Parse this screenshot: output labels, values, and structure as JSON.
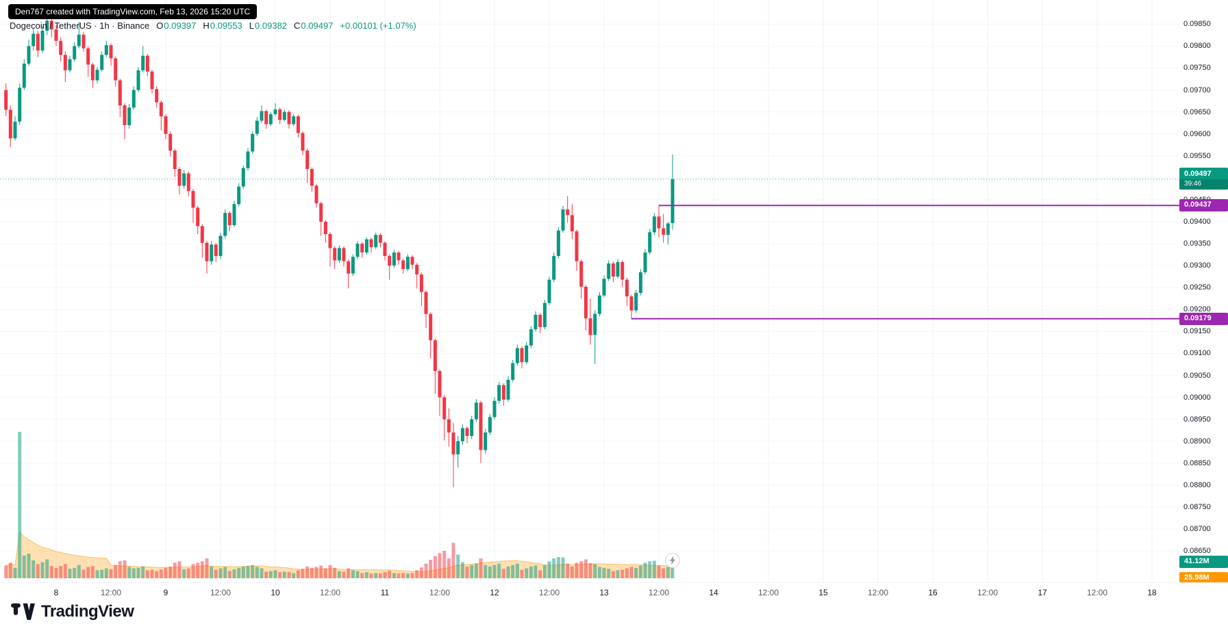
{
  "watermark": "Den767 created with TradingView.com, Feb 13, 2026 15:20 UTC",
  "legend": {
    "title": "Dogecoin / TetherUS · 1h · Binance",
    "o_label": "O",
    "o": "0.09397",
    "h_label": "H",
    "h": "0.09553",
    "l_label": "L",
    "l": "0.09382",
    "c_label": "C",
    "c": "0.09497",
    "change": "+0.00101 (+1.07%)"
  },
  "price_axis": {
    "ticks": [
      "0.09850",
      "0.09800",
      "0.09750",
      "0.09700",
      "0.09650",
      "0.09600",
      "0.09550",
      "0.09500",
      "0.09450",
      "0.09400",
      "0.09350",
      "0.09300",
      "0.09250",
      "0.09200",
      "0.09150",
      "0.09100",
      "0.09050",
      "0.09000",
      "0.08950",
      "0.08900",
      "0.08850",
      "0.08800",
      "0.08750",
      "0.08700",
      "0.08650"
    ],
    "current_price": "0.09497",
    "countdown": "39:46",
    "level1": "0.09437",
    "level2": "0.09179",
    "volume": "41.12M",
    "volume_ma": "25.98M"
  },
  "time_axis": {
    "labels": [
      "8",
      "12:00",
      "9",
      "12:00",
      "10",
      "12:00",
      "11",
      "12:00",
      "12",
      "12:00",
      "13",
      "12:00",
      "14",
      "12:00",
      "15",
      "12:00",
      "16",
      "12:00",
      "17",
      "12:00",
      "18"
    ]
  },
  "logo_text": "TradingView",
  "colors": {
    "up": "#089981",
    "down": "#f23645",
    "level": "#9c27b0",
    "volume_ma": "#ff9800",
    "text": "#131722"
  },
  "chart_data": {
    "type": "candlestick",
    "title": "Dogecoin / TetherUS, 1h, Binance",
    "interval": "1h",
    "exchange": "Binance",
    "pair": "Dogecoin / TetherUS",
    "current_price": 0.09497,
    "countdown": "39:46",
    "change": "+0.00101 (+1.07%)",
    "levels": [
      0.09437,
      0.09179
    ],
    "level_anchor_indexes": [
      143,
      137
    ],
    "price_axis_range": [
      0.0865,
      0.0985
    ],
    "time_axis_days": [
      8,
      18
    ],
    "volume_current_m": 41.12,
    "volume_ma_m": 25.98,
    "ohlcv_desc": "hourly candles [open, high, low, close, volume(M)], ending Feb 13 15:00 UTC",
    "ohlcv": [
      [
        0.097,
        0.09715,
        0.0964,
        0.09655,
        27
      ],
      [
        0.09655,
        0.09665,
        0.0957,
        0.0959,
        33
      ],
      [
        0.0959,
        0.0964,
        0.09585,
        0.09628,
        22
      ],
      [
        0.09628,
        0.09715,
        0.0962,
        0.09705,
        310
      ],
      [
        0.09705,
        0.0977,
        0.097,
        0.0976,
        48
      ],
      [
        0.0976,
        0.09815,
        0.09755,
        0.098,
        52
      ],
      [
        0.098,
        0.0984,
        0.0979,
        0.09828,
        38
      ],
      [
        0.09828,
        0.09835,
        0.09775,
        0.0979,
        30
      ],
      [
        0.0979,
        0.09845,
        0.09785,
        0.09835,
        34
      ],
      [
        0.09835,
        0.09867,
        0.09825,
        0.09858,
        40
      ],
      [
        0.09858,
        0.09862,
        0.0982,
        0.09838,
        26
      ],
      [
        0.09838,
        0.09848,
        0.098,
        0.09812,
        22
      ],
      [
        0.09812,
        0.0982,
        0.09765,
        0.0978,
        26
      ],
      [
        0.0978,
        0.09788,
        0.09718,
        0.09745,
        30
      ],
      [
        0.09745,
        0.09778,
        0.0974,
        0.0977,
        20
      ],
      [
        0.0977,
        0.09808,
        0.09765,
        0.098,
        22
      ],
      [
        0.098,
        0.09855,
        0.09795,
        0.09826,
        28
      ],
      [
        0.09826,
        0.09832,
        0.09788,
        0.09795,
        18
      ],
      [
        0.09795,
        0.098,
        0.0973,
        0.09758,
        24
      ],
      [
        0.09758,
        0.09762,
        0.09705,
        0.09722,
        26
      ],
      [
        0.09722,
        0.09752,
        0.09715,
        0.09746,
        17
      ],
      [
        0.09746,
        0.09788,
        0.09742,
        0.0978,
        18
      ],
      [
        0.0978,
        0.09812,
        0.09775,
        0.09802,
        21
      ],
      [
        0.09802,
        0.09806,
        0.09755,
        0.09772,
        19
      ],
      [
        0.09772,
        0.09776,
        0.09708,
        0.09722,
        28
      ],
      [
        0.09722,
        0.09726,
        0.09638,
        0.09665,
        36
      ],
      [
        0.09665,
        0.0967,
        0.09588,
        0.0962,
        38
      ],
      [
        0.0962,
        0.09668,
        0.09612,
        0.0966,
        24
      ],
      [
        0.0966,
        0.09708,
        0.09655,
        0.097,
        21
      ],
      [
        0.097,
        0.09752,
        0.09695,
        0.09745,
        22
      ],
      [
        0.09745,
        0.098,
        0.0974,
        0.09778,
        25
      ],
      [
        0.09778,
        0.09782,
        0.09732,
        0.09742,
        17
      ],
      [
        0.09742,
        0.09746,
        0.09692,
        0.09702,
        18
      ],
      [
        0.09702,
        0.09708,
        0.0966,
        0.09672,
        15
      ],
      [
        0.09672,
        0.09676,
        0.09608,
        0.0964,
        19
      ],
      [
        0.0964,
        0.09645,
        0.09588,
        0.096,
        22
      ],
      [
        0.096,
        0.09606,
        0.09548,
        0.09562,
        25
      ],
      [
        0.09562,
        0.09566,
        0.09502,
        0.0952,
        33
      ],
      [
        0.0952,
        0.09525,
        0.09462,
        0.09482,
        36
      ],
      [
        0.09482,
        0.09518,
        0.09475,
        0.0951,
        19
      ],
      [
        0.0951,
        0.09514,
        0.09458,
        0.0947,
        21
      ],
      [
        0.0947,
        0.09475,
        0.09398,
        0.09432,
        30
      ],
      [
        0.09432,
        0.09436,
        0.09372,
        0.0939,
        33
      ],
      [
        0.0939,
        0.09395,
        0.09318,
        0.09352,
        36
      ],
      [
        0.09352,
        0.09356,
        0.09282,
        0.0931,
        42
      ],
      [
        0.0931,
        0.09356,
        0.09302,
        0.09348,
        25
      ],
      [
        0.09348,
        0.09352,
        0.09308,
        0.09322,
        18
      ],
      [
        0.09322,
        0.09375,
        0.09315,
        0.09368,
        21
      ],
      [
        0.09368,
        0.09428,
        0.09362,
        0.0942,
        24
      ],
      [
        0.0942,
        0.09424,
        0.09378,
        0.09392,
        15
      ],
      [
        0.09392,
        0.09448,
        0.09388,
        0.0944,
        19
      ],
      [
        0.0944,
        0.09488,
        0.09435,
        0.0948,
        22
      ],
      [
        0.0948,
        0.09528,
        0.09475,
        0.09522,
        25
      ],
      [
        0.09522,
        0.09568,
        0.09516,
        0.0956,
        26
      ],
      [
        0.0956,
        0.09606,
        0.09555,
        0.096,
        28
      ],
      [
        0.096,
        0.09638,
        0.09595,
        0.0963,
        24
      ],
      [
        0.0963,
        0.09665,
        0.09625,
        0.09652,
        21
      ],
      [
        0.09652,
        0.09656,
        0.09612,
        0.09622,
        14
      ],
      [
        0.09622,
        0.0965,
        0.09618,
        0.09645,
        15
      ],
      [
        0.09645,
        0.0967,
        0.0964,
        0.09656,
        17
      ],
      [
        0.09656,
        0.0966,
        0.09622,
        0.09632,
        13
      ],
      [
        0.09632,
        0.09655,
        0.09628,
        0.0965,
        14
      ],
      [
        0.0965,
        0.09654,
        0.09612,
        0.09622,
        13
      ],
      [
        0.09622,
        0.09645,
        0.09618,
        0.0964,
        11
      ],
      [
        0.0964,
        0.09644,
        0.09592,
        0.09602,
        17
      ],
      [
        0.09602,
        0.09606,
        0.09552,
        0.09562,
        20
      ],
      [
        0.09562,
        0.09566,
        0.09488,
        0.0952,
        25
      ],
      [
        0.0952,
        0.09524,
        0.09468,
        0.09482,
        22
      ],
      [
        0.09482,
        0.09486,
        0.09432,
        0.09442,
        24
      ],
      [
        0.09442,
        0.09446,
        0.09368,
        0.094,
        27
      ],
      [
        0.094,
        0.09404,
        0.09352,
        0.09372,
        21
      ],
      [
        0.09372,
        0.09376,
        0.09298,
        0.0934,
        28
      ],
      [
        0.0934,
        0.09344,
        0.09292,
        0.09312,
        22
      ],
      [
        0.09312,
        0.09346,
        0.09306,
        0.0934,
        15
      ],
      [
        0.0934,
        0.09344,
        0.09298,
        0.0931,
        14
      ],
      [
        0.0931,
        0.09314,
        0.09248,
        0.09282,
        21
      ],
      [
        0.09282,
        0.09326,
        0.09276,
        0.0932,
        17
      ],
      [
        0.0932,
        0.09356,
        0.09315,
        0.0935,
        15
      ],
      [
        0.0935,
        0.09354,
        0.09318,
        0.0933,
        11
      ],
      [
        0.0933,
        0.09365,
        0.09325,
        0.0936,
        13
      ],
      [
        0.0936,
        0.09364,
        0.0933,
        0.09342,
        10
      ],
      [
        0.09342,
        0.09375,
        0.09338,
        0.0937,
        11
      ],
      [
        0.0937,
        0.09374,
        0.09342,
        0.09352,
        10
      ],
      [
        0.09352,
        0.09356,
        0.09312,
        0.09322,
        13
      ],
      [
        0.09322,
        0.09326,
        0.09268,
        0.093,
        16
      ],
      [
        0.093,
        0.09336,
        0.09295,
        0.0933,
        11
      ],
      [
        0.0933,
        0.09334,
        0.09302,
        0.09312,
        10
      ],
      [
        0.09312,
        0.09316,
        0.09282,
        0.09292,
        11
      ],
      [
        0.09292,
        0.09326,
        0.09288,
        0.0932,
        10
      ],
      [
        0.0932,
        0.09324,
        0.09292,
        0.09302,
        11
      ],
      [
        0.09302,
        0.09306,
        0.09248,
        0.0928,
        17
      ],
      [
        0.0928,
        0.09284,
        0.09208,
        0.0924,
        23
      ],
      [
        0.0924,
        0.09244,
        0.09158,
        0.0919,
        31
      ],
      [
        0.0919,
        0.09194,
        0.09088,
        0.0913,
        39
      ],
      [
        0.0913,
        0.09134,
        0.09008,
        0.0906,
        47
      ],
      [
        0.0906,
        0.09064,
        0.08958,
        0.09,
        53
      ],
      [
        0.09,
        0.09005,
        0.08902,
        0.0895,
        58
      ],
      [
        0.0895,
        0.08975,
        0.08888,
        0.0892,
        42
      ],
      [
        0.0892,
        0.08942,
        0.08795,
        0.0887,
        75
      ],
      [
        0.0887,
        0.08912,
        0.0884,
        0.089,
        50
      ],
      [
        0.089,
        0.08938,
        0.08892,
        0.0893,
        34
      ],
      [
        0.0893,
        0.08934,
        0.08896,
        0.08912,
        25
      ],
      [
        0.08912,
        0.08958,
        0.08905,
        0.0895,
        28
      ],
      [
        0.0895,
        0.08996,
        0.08944,
        0.08988,
        31
      ],
      [
        0.08988,
        0.08992,
        0.0885,
        0.0888,
        42
      ],
      [
        0.0888,
        0.08928,
        0.08872,
        0.0892,
        28
      ],
      [
        0.0892,
        0.08962,
        0.08914,
        0.08955,
        25
      ],
      [
        0.08955,
        0.09,
        0.0895,
        0.08992,
        28
      ],
      [
        0.08992,
        0.09035,
        0.08986,
        0.09028,
        31
      ],
      [
        0.09028,
        0.09032,
        0.08982,
        0.08995,
        20
      ],
      [
        0.08995,
        0.09048,
        0.0899,
        0.0904,
        25
      ],
      [
        0.0904,
        0.09085,
        0.09035,
        0.09078,
        28
      ],
      [
        0.09078,
        0.0912,
        0.09072,
        0.09112,
        31
      ],
      [
        0.09112,
        0.09116,
        0.09066,
        0.0908,
        18
      ],
      [
        0.0908,
        0.09126,
        0.09075,
        0.09118,
        21
      ],
      [
        0.09118,
        0.09162,
        0.09112,
        0.09155,
        25
      ],
      [
        0.09155,
        0.09196,
        0.0915,
        0.09188,
        27
      ],
      [
        0.09188,
        0.09192,
        0.09146,
        0.0916,
        17
      ],
      [
        0.0916,
        0.09222,
        0.09155,
        0.09215,
        28
      ],
      [
        0.09215,
        0.09275,
        0.0921,
        0.09268,
        36
      ],
      [
        0.09268,
        0.0933,
        0.09262,
        0.09322,
        42
      ],
      [
        0.09322,
        0.09388,
        0.09316,
        0.0938,
        45
      ],
      [
        0.0938,
        0.09436,
        0.09375,
        0.09428,
        44
      ],
      [
        0.09428,
        0.09459,
        0.09398,
        0.09415,
        31
      ],
      [
        0.09415,
        0.0944,
        0.0936,
        0.09378,
        25
      ],
      [
        0.09378,
        0.09382,
        0.09288,
        0.0931,
        33
      ],
      [
        0.0931,
        0.09314,
        0.09225,
        0.09252,
        36
      ],
      [
        0.09252,
        0.09256,
        0.09152,
        0.0918,
        40
      ],
      [
        0.0918,
        0.09225,
        0.0912,
        0.09142,
        32
      ],
      [
        0.09142,
        0.09198,
        0.09076,
        0.0919,
        30
      ],
      [
        0.0919,
        0.0924,
        0.09185,
        0.09232,
        24
      ],
      [
        0.09232,
        0.09278,
        0.09228,
        0.0927,
        22
      ],
      [
        0.0927,
        0.09312,
        0.09265,
        0.09305,
        20
      ],
      [
        0.09305,
        0.0931,
        0.09262,
        0.09275,
        15
      ],
      [
        0.09275,
        0.09315,
        0.0927,
        0.09308,
        17
      ],
      [
        0.09308,
        0.09312,
        0.09252,
        0.09268,
        18
      ],
      [
        0.09268,
        0.09272,
        0.09208,
        0.0923,
        21
      ],
      [
        0.0923,
        0.09234,
        0.09179,
        0.09198,
        24
      ],
      [
        0.09198,
        0.09245,
        0.09192,
        0.09238,
        22
      ],
      [
        0.09238,
        0.09292,
        0.09232,
        0.09285,
        27
      ],
      [
        0.09285,
        0.09338,
        0.0928,
        0.0933,
        33
      ],
      [
        0.0933,
        0.09384,
        0.09325,
        0.09376,
        36
      ],
      [
        0.09376,
        0.0942,
        0.0937,
        0.09412,
        37
      ],
      [
        0.09412,
        0.09437,
        0.09365,
        0.09385,
        27
      ],
      [
        0.09385,
        0.09418,
        0.09352,
        0.0937,
        21
      ],
      [
        0.0937,
        0.094,
        0.09348,
        0.09396,
        24
      ],
      [
        0.09397,
        0.09553,
        0.09382,
        0.09497,
        41.12
      ]
    ]
  }
}
